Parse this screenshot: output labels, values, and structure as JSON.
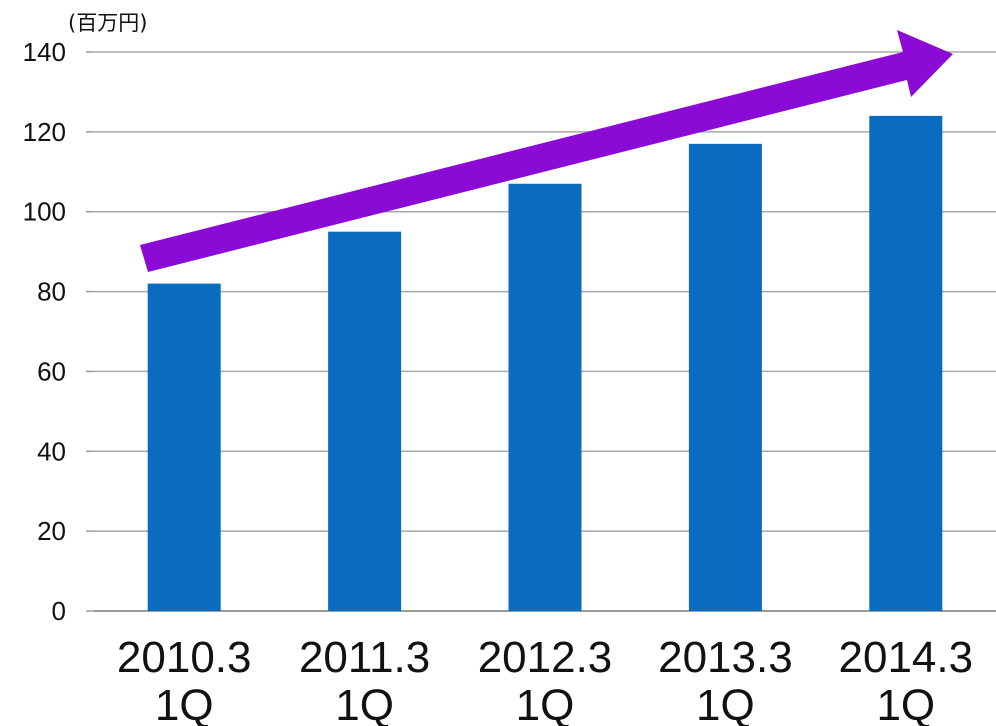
{
  "chart_data": {
    "type": "bar",
    "unit_label": "(百万円)",
    "categories": [
      [
        "2010.3",
        "1Q"
      ],
      [
        "2011.3",
        "1Q"
      ],
      [
        "2012.3",
        "1Q"
      ],
      [
        "2013.3",
        "1Q"
      ],
      [
        "2014.3",
        "1Q"
      ]
    ],
    "values": [
      82,
      95,
      107,
      117,
      124
    ],
    "ylim": [
      0,
      140
    ],
    "yticks": [
      0,
      20,
      40,
      60,
      80,
      100,
      120,
      140
    ],
    "grid": true,
    "bar_color": "#0a6cc0",
    "trend_arrow_color": "#8b0ad6",
    "annotation": "upward trend arrow"
  }
}
